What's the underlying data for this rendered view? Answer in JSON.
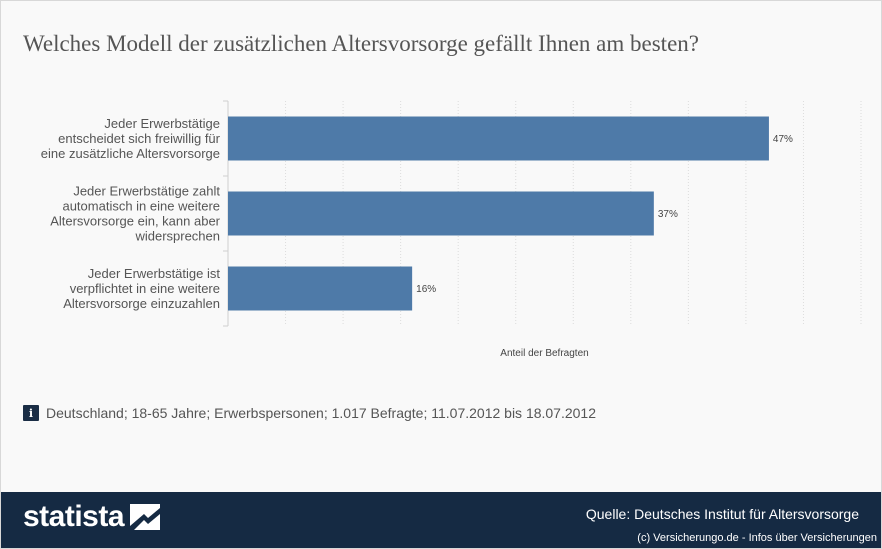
{
  "title": "Welches Modell der zusätzlichen Altersvorsorge gefällt Ihnen am besten?",
  "chart_data": {
    "type": "bar",
    "orientation": "horizontal",
    "categories": [
      [
        "Jeder Erwerbstätige",
        "entscheidet sich freiwillig für",
        "eine zusätzliche Altersvorsorge"
      ],
      [
        "Jeder Erwerbstätige zahlt",
        "automatisch in eine weitere",
        "Altersvorsorge ein, kann aber",
        "widersprechen"
      ],
      [
        "Jeder Erwerbstätige ist",
        "verpflichtet in eine weitere",
        "Altersvorsorge einzuzahlen"
      ]
    ],
    "values": [
      47,
      37,
      16
    ],
    "value_labels": [
      "47%",
      "37%",
      "16%"
    ],
    "xlabel": "Anteil der Befragten",
    "xlim": [
      0,
      55
    ],
    "grid": true,
    "bar_color": "#4e7aa8"
  },
  "note": {
    "icon": "info-icon",
    "text": "Deutschland; 18-65 Jahre; Erwerbspersonen; 1.017 Befragte; 11.07.2012 bis 18.07.2012"
  },
  "footer": {
    "logo_text": "statista",
    "source": "Quelle: Deutsches Institut für Altersvorsorge",
    "copyright": "(c) Versicherungo.de - Infos über Versicherungen"
  }
}
